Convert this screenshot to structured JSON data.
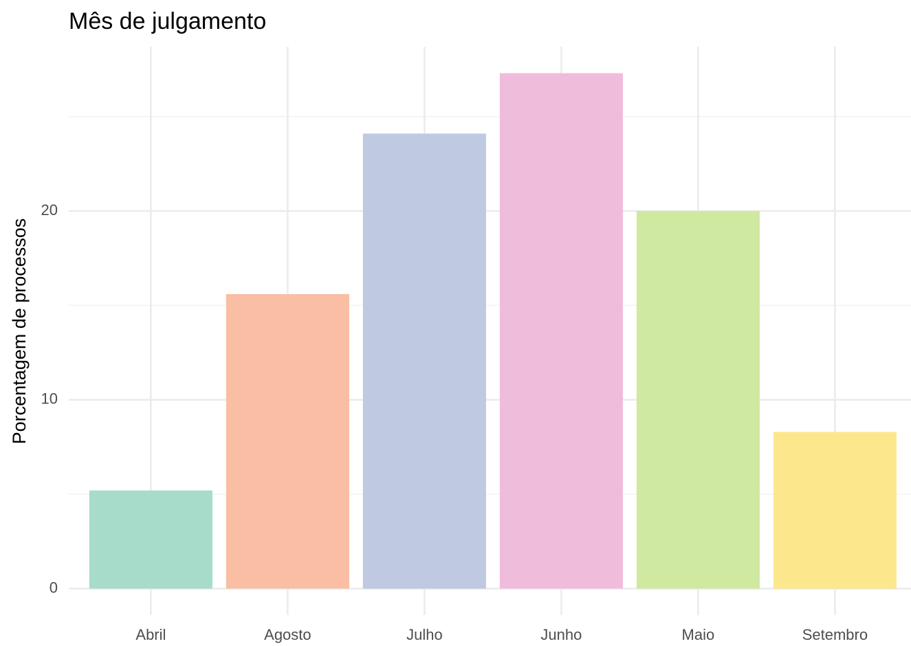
{
  "chart_data": {
    "type": "bar",
    "title": "Mês de julgamento",
    "y_label": "Porcentagem de processos",
    "categories": [
      "Abril",
      "Agosto",
      "Julho",
      "Junho",
      "Maio",
      "Setembro"
    ],
    "values": [
      5.2,
      15.6,
      24.1,
      27.3,
      20.0,
      8.3
    ],
    "colors": [
      "#a7dcca",
      "#f9bea3",
      "#bfc9e1",
      "#f0bcdc",
      "#d0e9a0",
      "#fde78c"
    ],
    "ylim": [
      -1.4,
      28.7
    ],
    "yticks": [
      0,
      10,
      20
    ],
    "minor_yticks": [
      5,
      15,
      25
    ],
    "grid": true
  }
}
